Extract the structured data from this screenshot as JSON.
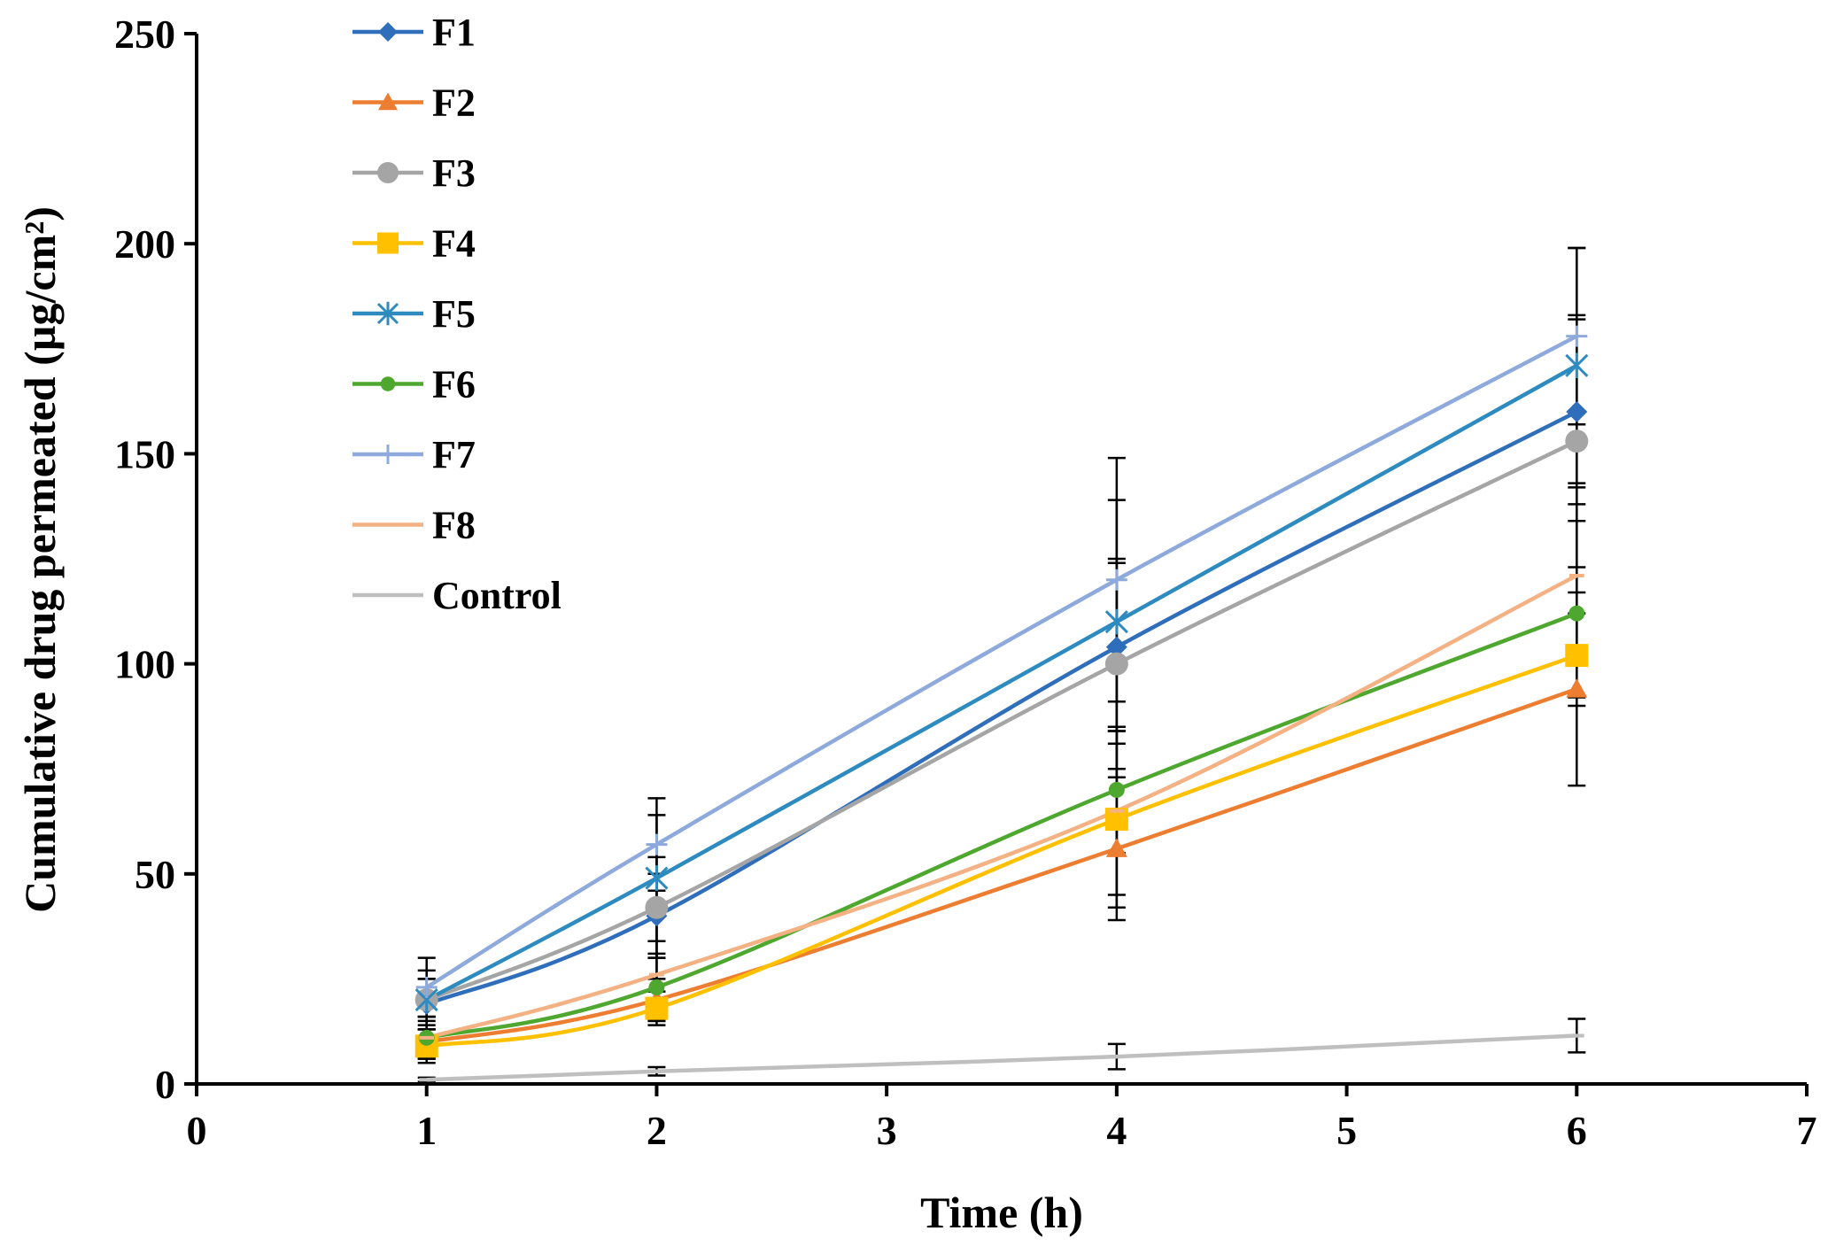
{
  "chart_data": {
    "type": "line",
    "title": "",
    "xlabel": "Time (h)",
    "ylabel": "Cumulative drug permeated (µg/cm²)",
    "xlim": [
      0,
      7
    ],
    "ylim": [
      0,
      250
    ],
    "x_ticks": [
      "0",
      "1",
      "2",
      "3",
      "4",
      "5",
      "6",
      "7"
    ],
    "y_ticks": [
      "0",
      "50",
      "100",
      "150",
      "200",
      "250"
    ],
    "x": [
      1,
      2,
      4,
      6
    ],
    "grid": false,
    "legend_position": "top-left",
    "series": [
      {
        "name": "F1",
        "values": [
          19,
          40,
          104,
          160
        ],
        "errors": [
          6,
          10,
          20,
          22
        ],
        "color": "#2F6EBA",
        "marker": "diamond"
      },
      {
        "name": "F2",
        "values": [
          10,
          20,
          56,
          94
        ],
        "errors": [
          4,
          5,
          17,
          23
        ],
        "color": "#ED7D31",
        "marker": "triangle"
      },
      {
        "name": "F3",
        "values": [
          20,
          42,
          100,
          153
        ],
        "errors": [
          5,
          12,
          25,
          30
        ],
        "color": "#A5A5A5",
        "marker": "circle"
      },
      {
        "name": "F4",
        "values": [
          9,
          18,
          63,
          102
        ],
        "errors": [
          4,
          4,
          21,
          10
        ],
        "color": "#FFC000",
        "marker": "square"
      },
      {
        "name": "F5",
        "values": [
          20,
          49,
          110,
          171
        ],
        "errors": [
          7,
          15,
          29,
          28
        ],
        "color": "#2E8BC0",
        "marker": "star"
      },
      {
        "name": "F6",
        "values": [
          11,
          23,
          70,
          112
        ],
        "errors": [
          5,
          8,
          15,
          22
        ],
        "color": "#4EA72E",
        "marker": "dot"
      },
      {
        "name": "F7",
        "values": [
          23,
          57,
          120,
          178
        ],
        "errors": [
          7,
          11,
          29,
          21
        ],
        "color": "#8EA9DB",
        "marker": "plus"
      },
      {
        "name": "F8",
        "values": [
          11,
          26,
          65,
          121
        ],
        "errors": [
          5,
          8,
          20,
          21
        ],
        "color": "#F4B183",
        "marker": "dash"
      },
      {
        "name": "Control",
        "values": [
          1,
          3,
          6.5,
          11.5
        ],
        "errors": [
          0.5,
          1,
          3,
          4
        ],
        "color": "#BFBFBF",
        "marker": "dash"
      }
    ]
  }
}
